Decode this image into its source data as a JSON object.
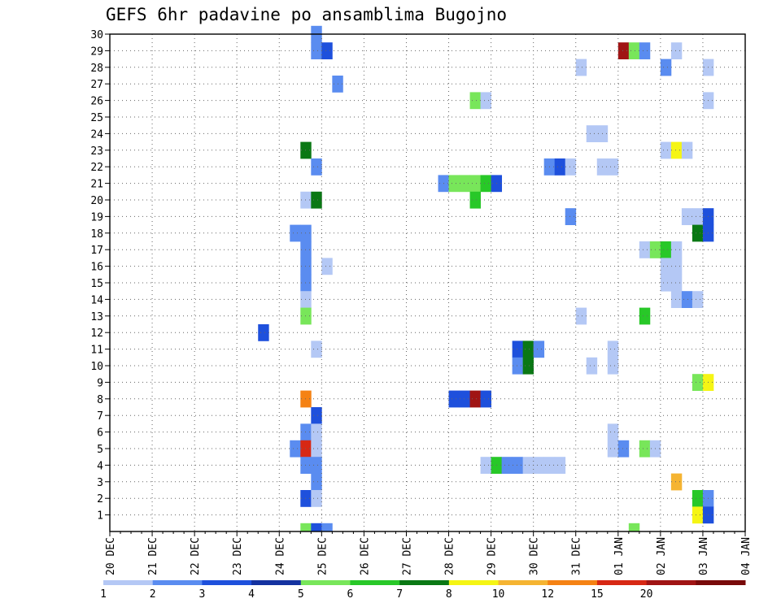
{
  "chart_data": {
    "type": "heatmap",
    "title": "GEFS 6hr padavine po ansamblima Bugojno",
    "x_labels": [
      "20 DEC",
      "21 DEC",
      "22 DEC",
      "23 DEC",
      "24 DEC",
      "25 DEC",
      "26 DEC",
      "27 DEC",
      "28 DEC",
      "29 DEC",
      "30 DEC",
      "31 DEC",
      "01 JAN",
      "02 JAN",
      "03 JAN",
      "04 JAN"
    ],
    "y_labels": [
      "1",
      "2",
      "3",
      "4",
      "5",
      "6",
      "7",
      "8",
      "9",
      "10",
      "11",
      "12",
      "13",
      "14",
      "15",
      "16",
      "17",
      "18",
      "19",
      "20",
      "21",
      "22",
      "23",
      "24",
      "25",
      "26",
      "27",
      "28",
      "29",
      "30"
    ],
    "ylim": [
      0,
      30
    ],
    "grid": true,
    "colorbar": {
      "labels": [
        "1",
        "2",
        "3",
        "4",
        "5",
        "6",
        "7",
        "8",
        "10",
        "12",
        "15",
        "20"
      ],
      "colors": [
        "#b4c8f5",
        "#5a8cf0",
        "#1e50dc",
        "#1432a0",
        "#78e65a",
        "#28c828",
        "#0a7814",
        "#f5f514",
        "#f5b432",
        "#f58214",
        "#d72814",
        "#a01414",
        "#780a0a"
      ]
    },
    "cells": [
      {
        "t": 19,
        "m": 30,
        "c": 2
      },
      {
        "t": 19,
        "m": 29,
        "c": 2
      },
      {
        "t": 20,
        "m": 29,
        "c": 3
      },
      {
        "t": 21,
        "m": 27,
        "c": 2
      },
      {
        "t": 18,
        "m": 23,
        "c": 7
      },
      {
        "t": 19,
        "m": 22,
        "c": 2
      },
      {
        "t": 18,
        "m": 20,
        "c": 1
      },
      {
        "t": 19,
        "m": 20,
        "c": 7
      },
      {
        "t": 17,
        "m": 18,
        "c": 2
      },
      {
        "t": 18,
        "m": 18,
        "c": 2
      },
      {
        "t": 18,
        "m": 17,
        "c": 2
      },
      {
        "t": 20,
        "m": 16,
        "c": 1
      },
      {
        "t": 18,
        "m": 16,
        "c": 2
      },
      {
        "t": 18,
        "m": 15,
        "c": 2
      },
      {
        "t": 18,
        "m": 14,
        "c": 1
      },
      {
        "t": 18,
        "m": 13,
        "c": 5
      },
      {
        "t": 14,
        "m": 12,
        "c": 3
      },
      {
        "t": 19,
        "m": 11,
        "c": 1
      },
      {
        "t": 18,
        "m": 8,
        "c": 10
      },
      {
        "t": 19,
        "m": 7,
        "c": 3
      },
      {
        "t": 18,
        "m": 6,
        "c": 2
      },
      {
        "t": 19,
        "m": 6,
        "c": 1
      },
      {
        "t": 17,
        "m": 5,
        "c": 2
      },
      {
        "t": 18,
        "m": 5,
        "c": 11
      },
      {
        "t": 19,
        "m": 5,
        "c": 1
      },
      {
        "t": 18,
        "m": 4,
        "c": 2
      },
      {
        "t": 19,
        "m": 4,
        "c": 2
      },
      {
        "t": 19,
        "m": 3,
        "c": 2
      },
      {
        "t": 18,
        "m": 2,
        "c": 3
      },
      {
        "t": 19,
        "m": 2,
        "c": 1
      },
      {
        "t": 18,
        "m": 0,
        "c": 5
      },
      {
        "t": 19,
        "m": 0,
        "c": 3
      },
      {
        "t": 20,
        "m": 0,
        "c": 2
      },
      {
        "t": 34,
        "m": 26,
        "c": 5
      },
      {
        "t": 35,
        "m": 26,
        "c": 1
      },
      {
        "t": 31,
        "m": 21,
        "c": 2
      },
      {
        "t": 32,
        "m": 21,
        "c": 5
      },
      {
        "t": 33,
        "m": 21,
        "c": 5
      },
      {
        "t": 34,
        "m": 21,
        "c": 5
      },
      {
        "t": 35,
        "m": 21,
        "c": 6
      },
      {
        "t": 36,
        "m": 21,
        "c": 3
      },
      {
        "t": 34,
        "m": 20,
        "c": 6
      },
      {
        "t": 32,
        "m": 8,
        "c": 3
      },
      {
        "t": 33,
        "m": 8,
        "c": 3
      },
      {
        "t": 34,
        "m": 8,
        "c": 12
      },
      {
        "t": 35,
        "m": 8,
        "c": 3
      },
      {
        "t": 38,
        "m": 11,
        "c": 3
      },
      {
        "t": 39,
        "m": 11,
        "c": 7
      },
      {
        "t": 40,
        "m": 11,
        "c": 2
      },
      {
        "t": 38,
        "m": 10,
        "c": 2
      },
      {
        "t": 39,
        "m": 10,
        "c": 7
      },
      {
        "t": 35,
        "m": 4,
        "c": 1
      },
      {
        "t": 36,
        "m": 4,
        "c": 6
      },
      {
        "t": 37,
        "m": 4,
        "c": 2
      },
      {
        "t": 38,
        "m": 4,
        "c": 2
      },
      {
        "t": 39,
        "m": 4,
        "c": 1
      },
      {
        "t": 40,
        "m": 4,
        "c": 1
      },
      {
        "t": 41,
        "m": 4,
        "c": 1
      },
      {
        "t": 42,
        "m": 4,
        "c": 1
      },
      {
        "t": 41,
        "m": 22,
        "c": 2
      },
      {
        "t": 42,
        "m": 22,
        "c": 3
      },
      {
        "t": 43,
        "m": 22,
        "c": 1
      },
      {
        "t": 43,
        "m": 19,
        "c": 2
      },
      {
        "t": 44,
        "m": 28,
        "c": 1
      },
      {
        "t": 45,
        "m": 24,
        "c": 1
      },
      {
        "t": 46,
        "m": 24,
        "c": 1
      },
      {
        "t": 46,
        "m": 22,
        "c": 1
      },
      {
        "t": 47,
        "m": 22,
        "c": 1
      },
      {
        "t": 44,
        "m": 13,
        "c": 1
      },
      {
        "t": 47,
        "m": 11,
        "c": 1
      },
      {
        "t": 45,
        "m": 10,
        "c": 1
      },
      {
        "t": 47,
        "m": 10,
        "c": 1
      },
      {
        "t": 47,
        "m": 6,
        "c": 1
      },
      {
        "t": 47,
        "m": 5,
        "c": 1
      },
      {
        "t": 48,
        "m": 5,
        "c": 2
      },
      {
        "t": 50,
        "m": 5,
        "c": 5
      },
      {
        "t": 51,
        "m": 5,
        "c": 1
      },
      {
        "t": 49,
        "m": 0,
        "c": 5
      },
      {
        "t": 48,
        "m": 29,
        "c": 12
      },
      {
        "t": 49,
        "m": 29,
        "c": 5
      },
      {
        "t": 50,
        "m": 29,
        "c": 2
      },
      {
        "t": 53,
        "m": 29,
        "c": 1
      },
      {
        "t": 52,
        "m": 28,
        "c": 2
      },
      {
        "t": 56,
        "m": 28,
        "c": 1
      },
      {
        "t": 56,
        "m": 26,
        "c": 1
      },
      {
        "t": 52,
        "m": 23,
        "c": 1
      },
      {
        "t": 53,
        "m": 23,
        "c": 8
      },
      {
        "t": 54,
        "m": 23,
        "c": 1
      },
      {
        "t": 54,
        "m": 19,
        "c": 1
      },
      {
        "t": 55,
        "m": 19,
        "c": 1
      },
      {
        "t": 56,
        "m": 19,
        "c": 3
      },
      {
        "t": 55,
        "m": 18,
        "c": 7
      },
      {
        "t": 56,
        "m": 18,
        "c": 3
      },
      {
        "t": 50,
        "m": 17,
        "c": 1
      },
      {
        "t": 51,
        "m": 17,
        "c": 5
      },
      {
        "t": 52,
        "m": 17,
        "c": 6
      },
      {
        "t": 53,
        "m": 17,
        "c": 1
      },
      {
        "t": 52,
        "m": 16,
        "c": 1
      },
      {
        "t": 53,
        "m": 16,
        "c": 1
      },
      {
        "t": 52,
        "m": 15,
        "c": 1
      },
      {
        "t": 53,
        "m": 15,
        "c": 1
      },
      {
        "t": 53,
        "m": 14,
        "c": 1
      },
      {
        "t": 54,
        "m": 14,
        "c": 2
      },
      {
        "t": 55,
        "m": 14,
        "c": 1
      },
      {
        "t": 50,
        "m": 13,
        "c": 6
      },
      {
        "t": 55,
        "m": 9,
        "c": 5
      },
      {
        "t": 56,
        "m": 9,
        "c": 8
      },
      {
        "t": 53,
        "m": 3,
        "c": 9
      },
      {
        "t": 55,
        "m": 2,
        "c": 6
      },
      {
        "t": 56,
        "m": 2,
        "c": 2
      },
      {
        "t": 55,
        "m": 1,
        "c": 8
      },
      {
        "t": 56,
        "m": 1,
        "c": 3
      }
    ]
  }
}
